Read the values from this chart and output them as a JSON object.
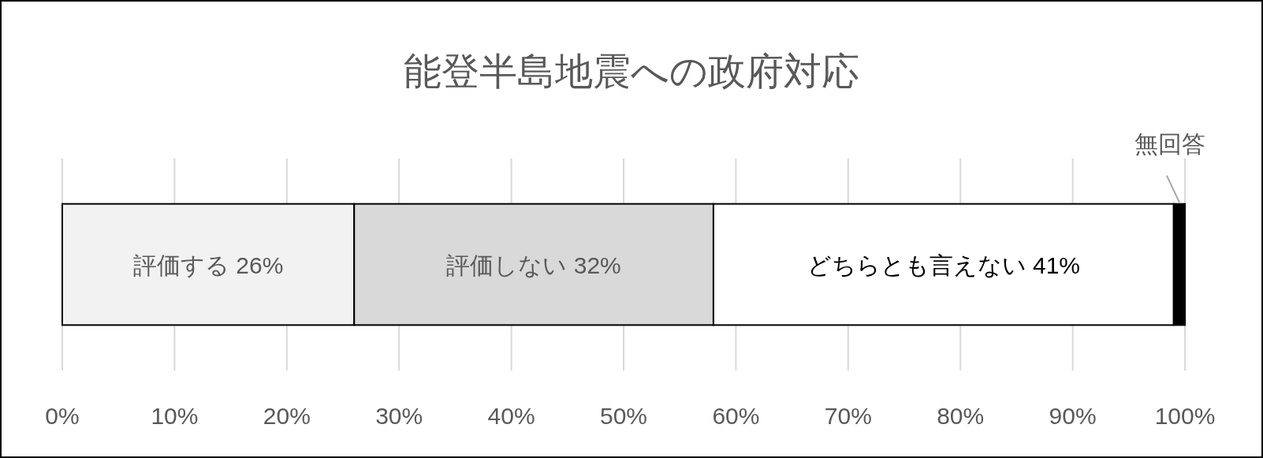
{
  "chart_data": {
    "type": "bar",
    "orientation": "horizontal",
    "stacked": true,
    "title": "能登半島地震への政府対応",
    "categories": [
      null
    ],
    "series": [
      {
        "name": "評価する",
        "color": "#f2f2f2",
        "values": [
          26
        ],
        "value_labels": [
          "26%"
        ]
      },
      {
        "name": "評価しない",
        "color": "#d9d9d9",
        "values": [
          32
        ],
        "value_labels": [
          "32%"
        ]
      },
      {
        "name": "どちらとも言えない",
        "color": "#ffffff",
        "values": [
          41
        ],
        "value_labels": [
          "41%"
        ]
      },
      {
        "name": "無回答",
        "color": "#000000",
        "values": [
          1
        ],
        "value_labels": [
          null
        ]
      }
    ],
    "xlim": [
      0,
      100
    ],
    "xticks": [
      {
        "value": 0,
        "label": "0%"
      },
      {
        "value": 10,
        "label": "10%"
      },
      {
        "value": 20,
        "label": "20%"
      },
      {
        "value": 30,
        "label": "30%"
      },
      {
        "value": 40,
        "label": "40%"
      },
      {
        "value": 50,
        "label": "50%"
      },
      {
        "value": 60,
        "label": "60%"
      },
      {
        "value": 70,
        "label": "70%"
      },
      {
        "value": 80,
        "label": "80%"
      },
      {
        "value": 90,
        "label": "90%"
      },
      {
        "value": 100,
        "label": "100%"
      }
    ],
    "grid": "x"
  }
}
